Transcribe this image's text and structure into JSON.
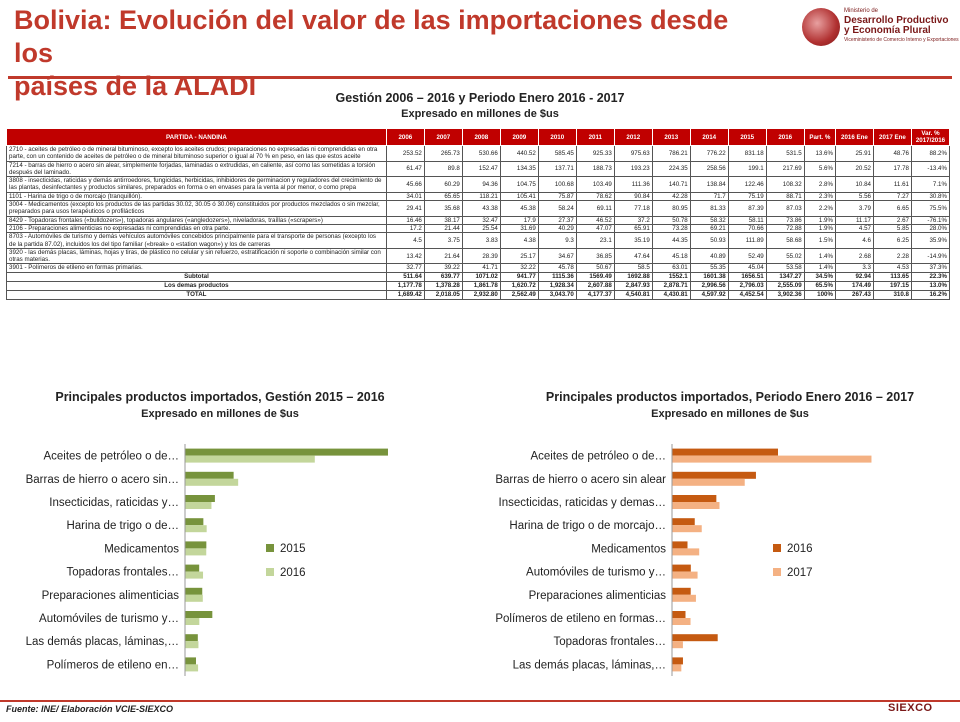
{
  "header": {
    "title_line1": "Bolivia: Evolución del valor de las importaciones desde los",
    "title_line2": "países de la ALADI",
    "logo_line1": "Ministerio de",
    "logo_line2": "Desarrollo Productivo",
    "logo_line3": "y Economía Plural",
    "logo_line4": "Viceministerio de Comercio Interno y Exportaciones"
  },
  "table": {
    "title": "Gestión 2006 – 2016 y Periodo Enero 2016 - 2017",
    "subtitle": "Expresado en millones de $us",
    "headers": [
      "PARTIDA - NANDINA",
      "2006",
      "2007",
      "2008",
      "2009",
      "2010",
      "2011",
      "2012",
      "2013",
      "2014",
      "2015",
      "2016",
      "Part. %",
      "2016 Ene",
      "2017 Ene",
      "Var. % 2017/2016"
    ],
    "rows": [
      {
        "desc": "2710 - aceites de petróleo o de mineral bituminoso, excepto los aceites crudos; preparaciones no expresadas ni comprendidas en otra parte, con un contenido de aceites de petróleo o de mineral bituminoso superior o igual al 70 % en peso, en las que estos aceite",
        "vals": [
          "253.52",
          "265.73",
          "530.66",
          "440.52",
          "585.45",
          "925.33",
          "975.63",
          "786.21",
          "776.22",
          "831.18",
          "531.5",
          "13.6%",
          "25.91",
          "48.76",
          "88.2%"
        ]
      },
      {
        "desc": "7214 - barras de hierro o acero sin alear, simplemente forjadas, laminadas o extrudidas, en caliente, así como las sometidas a torsión después del laminado.",
        "vals": [
          "61.47",
          "89.8",
          "152.47",
          "134.35",
          "137.71",
          "188.73",
          "193.23",
          "224.35",
          "258.56",
          "199.1",
          "217.69",
          "5.6%",
          "20.52",
          "17.78",
          "-13.4%"
        ]
      },
      {
        "desc": "3808 - insecticidas, raticidas y demás antirroedores, fungicidas, herbicidas, inhibidores de germinacion y reguladores del crecimiento de las plantas, desinfectantes y productos similares, preparados en forma o en envases para la venta al por menor, o como prepa",
        "vals": [
          "45.66",
          "60.29",
          "94.36",
          "104.75",
          "100.68",
          "103.49",
          "111.36",
          "140.71",
          "138.84",
          "122.46",
          "108.32",
          "2.8%",
          "10.84",
          "11.61",
          "7.1%"
        ]
      },
      {
        "desc": "1101 - Harina de trigo o de morcajo (tranquillón).",
        "vals": [
          "34.01",
          "65.65",
          "118.21",
          "105.41",
          "75.87",
          "78.62",
          "90.84",
          "42.28",
          "71.7",
          "75.19",
          "88.71",
          "2.3%",
          "5.56",
          "7.27",
          "30.8%"
        ]
      },
      {
        "desc": "3004 - Medicamentos (excepto los productos de las partidas 30.02, 30.05 ó 30.06) constituidos por productos mezclados o sin mezclar, preparados para usos terapéuticos o profilácticos",
        "vals": [
          "29.41",
          "35.68",
          "43.38",
          "45.38",
          "58.24",
          "69.11",
          "77.18",
          "80.95",
          "81.33",
          "87.39",
          "87.03",
          "2.2%",
          "3.79",
          "6.65",
          "75.5%"
        ]
      },
      {
        "desc": "8429 - Topadoras frontales («bulldozers»), topadoras angulares («angledozers»), niveladoras, traíllas («scrapers»)",
        "vals": [
          "16.46",
          "38.17",
          "32.47",
          "17.9",
          "27.37",
          "46.52",
          "37.2",
          "50.78",
          "58.32",
          "58.11",
          "73.86",
          "1.9%",
          "11.17",
          "2.67",
          "-76.1%"
        ]
      },
      {
        "desc": "2106 - Preparaciones alimenticias no expresadas ni comprendidas en otra parte.",
        "vals": [
          "17.2",
          "21.44",
          "25.54",
          "31.69",
          "40.29",
          "47.07",
          "65.91",
          "73.28",
          "69.21",
          "70.66",
          "72.88",
          "1.9%",
          "4.57",
          "5.85",
          "28.0%"
        ]
      },
      {
        "desc": "8703 - Automóviles de turismo y demás vehículos automóviles concebidos principalmente para el transporte de personas (excepto los de la partida 87.02), incluidos los del tipo familiar («break» o «station wagon») y los de carreras",
        "vals": [
          "4.5",
          "3.75",
          "3.83",
          "4.38",
          "9.3",
          "23.1",
          "35.19",
          "44.35",
          "50.93",
          "111.89",
          "58.68",
          "1.5%",
          "4.6",
          "6.25",
          "35.9%"
        ]
      },
      {
        "desc": "3920 - las demás placas, láminas, hojas y tiras, de plástico no celular y sin refuerzo, estratificación ni soporte o combinación similar con otras materias.",
        "vals": [
          "13.42",
          "21.64",
          "28.39",
          "25.17",
          "34.67",
          "36.85",
          "47.64",
          "45.18",
          "40.89",
          "52.49",
          "55.02",
          "1.4%",
          "2.68",
          "2.28",
          "-14.9%"
        ]
      },
      {
        "desc": "3901 - Polímeros de etileno en formas primarias.",
        "vals": [
          "32.77",
          "39.22",
          "41.71",
          "32.22",
          "45.78",
          "50.67",
          "58.5",
          "63.01",
          "55.35",
          "45.04",
          "53.58",
          "1.4%",
          "3.3",
          "4.53",
          "37.3%"
        ]
      }
    ],
    "totals": [
      {
        "label": "Subtotal",
        "vals": [
          "511.64",
          "639.77",
          "1071.02",
          "941.77",
          "1115.36",
          "1569.49",
          "1692.88",
          "1552.1",
          "1601.38",
          "1656.51",
          "1347.27",
          "34.5%",
          "92.94",
          "113.65",
          "22.3%"
        ]
      },
      {
        "label": "Los demas productos",
        "vals": [
          "1,177.78",
          "1,378.28",
          "1,861.78",
          "1,620.72",
          "1,928.34",
          "2,607.88",
          "2,847.93",
          "2,878.71",
          "2,996.56",
          "2,796.03",
          "2,555.09",
          "65.5%",
          "174.49",
          "197.15",
          "13.0%"
        ]
      },
      {
        "label": "TOTAL",
        "vals": [
          "1,689.42",
          "2,018.05",
          "2,932.80",
          "2,562.49",
          "3,043.70",
          "4,177.37",
          "4,540.81",
          "4,430.81",
          "4,597.92",
          "4,452.54",
          "3,902.36",
          "100%",
          "267.43",
          "310.8",
          "16.2%"
        ]
      }
    ]
  },
  "chart_data": [
    {
      "type": "bar",
      "orientation": "horizontal",
      "title": "Principales productos importados, Gestión 2015 – 2016",
      "subtitle": "Expresado en millones de $us",
      "categories": [
        "Aceites de petróleo o de…",
        "Barras de hierro o acero sin…",
        "Insecticidas, raticidas y…",
        "Harina de trigo o de…",
        "Medicamentos",
        "Topadoras frontales…",
        "Preparaciones alimenticias",
        "Automóviles de turismo y…",
        "Las demás placas, láminas,…",
        "Polímeros de etileno en…"
      ],
      "series": [
        {
          "name": "2015",
          "color": "#77933c",
          "values": [
            831.18,
            199.1,
            122.46,
            75.19,
            87.39,
            58.11,
            70.66,
            111.89,
            52.49,
            45.04
          ]
        },
        {
          "name": "2016",
          "color": "#c3d69b",
          "values": [
            531.5,
            217.69,
            108.32,
            88.71,
            87.03,
            73.86,
            72.88,
            58.68,
            55.02,
            53.58
          ]
        }
      ],
      "xlim": [
        0,
        950
      ],
      "legend": "right"
    },
    {
      "type": "bar",
      "orientation": "horizontal",
      "title": "Principales productos importados, Periodo Enero 2016 – 2017",
      "subtitle": "Expresado en millones de $us",
      "categories": [
        "Aceites de petróleo o de…",
        "Barras de hierro o acero sin alear",
        "Insecticidas, raticidas y demas…",
        "Harina de trigo o de morcajo…",
        "Medicamentos",
        "Automóviles de turismo y…",
        "Preparaciones alimenticias",
        "Polímeros de etileno en formas…",
        "Topadoras frontales…",
        "Las demás placas, láminas,…"
      ],
      "series": [
        {
          "name": "2016",
          "color": "#c55a11",
          "values": [
            25.91,
            20.52,
            10.84,
            5.56,
            3.79,
            4.6,
            4.57,
            3.3,
            11.17,
            2.68
          ]
        },
        {
          "name": "2017",
          "color": "#f4b183",
          "values": [
            48.76,
            17.78,
            11.61,
            7.27,
            6.65,
            6.25,
            5.85,
            4.53,
            2.67,
            2.28
          ]
        }
      ],
      "xlim": [
        0,
        55
      ],
      "legend": "right"
    }
  ],
  "footer": {
    "source": "Fuente: INE/ Elaboración VCIE-SIEXCO",
    "brand": "SIEXCO"
  }
}
